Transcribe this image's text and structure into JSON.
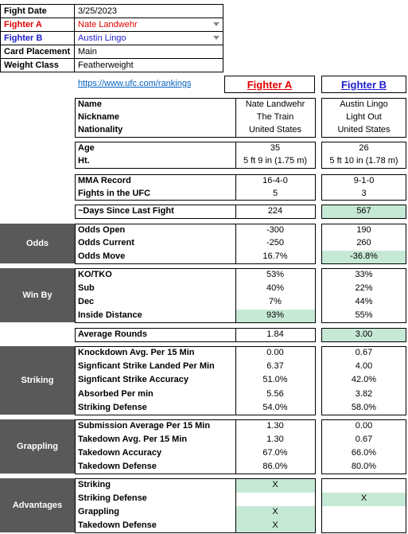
{
  "header": {
    "rows": [
      [
        "Fight Date",
        "3/25/2023"
      ],
      [
        "Fighter A",
        "Nate Landwehr"
      ],
      [
        "Fighter B",
        "Austin Lingo"
      ],
      [
        "Card Placement",
        "Main"
      ],
      [
        "Weight Class",
        "Featherweight"
      ]
    ]
  },
  "link": "https://www.ufc.com/rankings",
  "columns": [
    "Fighter A",
    "Fighter B"
  ],
  "groups": [
    {
      "rows": [
        {
          "label": "Name",
          "a": "Nate Landwehr",
          "b": "Austin Lingo"
        },
        {
          "label": "Nickname",
          "a": "The Train",
          "b": "Light Out"
        },
        {
          "label": "Nationality",
          "a": "United States",
          "b": "United States"
        }
      ]
    },
    {
      "rows": [
        {
          "label": "Age",
          "a": "35",
          "b": "26"
        },
        {
          "label": "Ht.",
          "a": "5 ft 9 in (1.75 m)",
          "b": "5 ft 10 in (1.78 m)"
        }
      ]
    },
    {
      "rows": [
        {
          "label": "MMA Record",
          "a": "16-4-0",
          "b": "9-1-0"
        },
        {
          "label": "Fights in the UFC",
          "a": "5",
          "b": "3"
        }
      ]
    },
    {
      "rows": [
        {
          "label": "~Days Since Last Fight",
          "a": "224",
          "b": "567",
          "highlight": "b"
        }
      ]
    },
    {
      "label": "Odds",
      "rows": [
        {
          "label": "Odds Open",
          "a": "-300",
          "b": "190"
        },
        {
          "label": "Odds Current",
          "a": "-250",
          "b": "260"
        },
        {
          "label": "Odds Move",
          "a": "16.7%",
          "b": "-36.8%",
          "highlight": "b"
        }
      ]
    },
    {
      "label": "Win By",
      "rows": [
        {
          "label": "KO/TKO",
          "a": "53%",
          "b": "33%"
        },
        {
          "label": "Sub",
          "a": "40%",
          "b": "22%"
        },
        {
          "label": "Dec",
          "a": "7%",
          "b": "44%"
        },
        {
          "label": "Inside Distance",
          "a": "93%",
          "b": "55%",
          "highlight": "a"
        }
      ]
    },
    {
      "rows": [
        {
          "label": "Average Rounds",
          "a": "1.84",
          "b": "3.00",
          "highlight": "b"
        }
      ]
    },
    {
      "label": "Striking",
      "rows": [
        {
          "label": "Knockdown Avg. Per 15 Min",
          "a": "0.00",
          "b": "0.67"
        },
        {
          "label": "Signficant Strike Landed Per Min",
          "a": "6.37",
          "b": "4.00"
        },
        {
          "label": "Signficant Strike Accuracy",
          "a": "51.0%",
          "b": "42.0%"
        },
        {
          "label": "Absorbed Per min",
          "a": "5.56",
          "b": "3.82"
        },
        {
          "label": "Striking Defense",
          "a": "54.0%",
          "b": "58.0%"
        }
      ]
    },
    {
      "label": "Grappling",
      "rows": [
        {
          "label": "Submission Average  Per 15 Min",
          "a": "1.30",
          "b": "0.00"
        },
        {
          "label": "Takedown Avg. Per 15 Min",
          "a": "1.30",
          "b": "0.67"
        },
        {
          "label": "Takedown Accuracy",
          "a": "67.0%",
          "b": "66.0%"
        },
        {
          "label": "Takedown Defense",
          "a": "86.0%",
          "b": "80.0%"
        }
      ]
    },
    {
      "label": "Advantages",
      "rows": [
        {
          "label": "Striking",
          "a": "X",
          "b": null,
          "highlight": "a"
        },
        {
          "label": "Striking Defense",
          "a": null,
          "b": "X",
          "highlight": "b"
        },
        {
          "label": "Grappling",
          "a": "X",
          "b": null,
          "highlight": "a"
        },
        {
          "label": "Takedown Defense",
          "a": "X",
          "b": null,
          "highlight": "a"
        }
      ]
    }
  ]
}
